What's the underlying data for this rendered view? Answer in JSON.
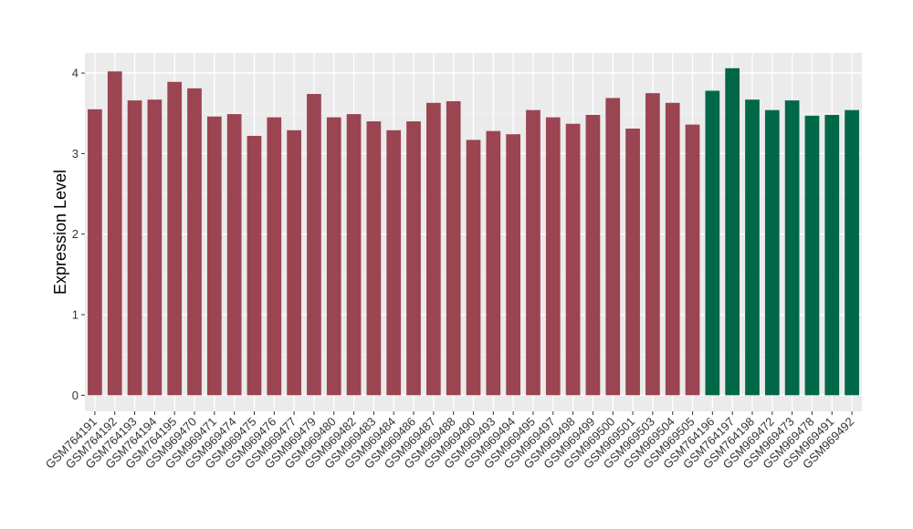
{
  "chart_data": {
    "type": "bar",
    "title": "",
    "xlabel": "",
    "ylabel": "Expression Level",
    "ylim": [
      -0.2,
      4.25
    ],
    "yticks": [
      0,
      1,
      2,
      3,
      4
    ],
    "grid": true,
    "background": "#EBEBEB",
    "categories": [
      "GSM764191",
      "GSM764192",
      "GSM764193",
      "GSM764194",
      "GSM764195",
      "GSM969470",
      "GSM969471",
      "GSM969474",
      "GSM969475",
      "GSM969476",
      "GSM969477",
      "GSM969479",
      "GSM969480",
      "GSM969482",
      "GSM969483",
      "GSM969484",
      "GSM969486",
      "GSM969487",
      "GSM969488",
      "GSM969490",
      "GSM969493",
      "GSM969494",
      "GSM969495",
      "GSM969497",
      "GSM969498",
      "GSM969499",
      "GSM969500",
      "GSM969501",
      "GSM969503",
      "GSM969504",
      "GSM969505",
      "GSM764196",
      "GSM764197",
      "GSM764198",
      "GSM969472",
      "GSM969473",
      "GSM969478",
      "GSM969491",
      "GSM969492"
    ],
    "values": [
      3.55,
      4.02,
      3.66,
      3.67,
      3.89,
      3.81,
      3.46,
      3.49,
      3.22,
      3.45,
      3.29,
      3.74,
      3.45,
      3.49,
      3.4,
      3.29,
      3.4,
      3.63,
      3.65,
      3.17,
      3.28,
      3.24,
      3.54,
      3.45,
      3.37,
      3.48,
      3.69,
      3.31,
      3.75,
      3.63,
      3.36,
      3.78,
      4.06,
      3.67,
      3.54,
      3.66,
      3.47,
      3.48,
      3.54
    ],
    "groups": [
      "a",
      "a",
      "a",
      "a",
      "a",
      "a",
      "a",
      "a",
      "a",
      "a",
      "a",
      "a",
      "a",
      "a",
      "a",
      "a",
      "a",
      "a",
      "a",
      "a",
      "a",
      "a",
      "a",
      "a",
      "a",
      "a",
      "a",
      "a",
      "a",
      "a",
      "a",
      "b",
      "b",
      "b",
      "b",
      "b",
      "b",
      "b",
      "b"
    ],
    "colors": {
      "a": "#9B4452",
      "b": "#006848"
    }
  }
}
